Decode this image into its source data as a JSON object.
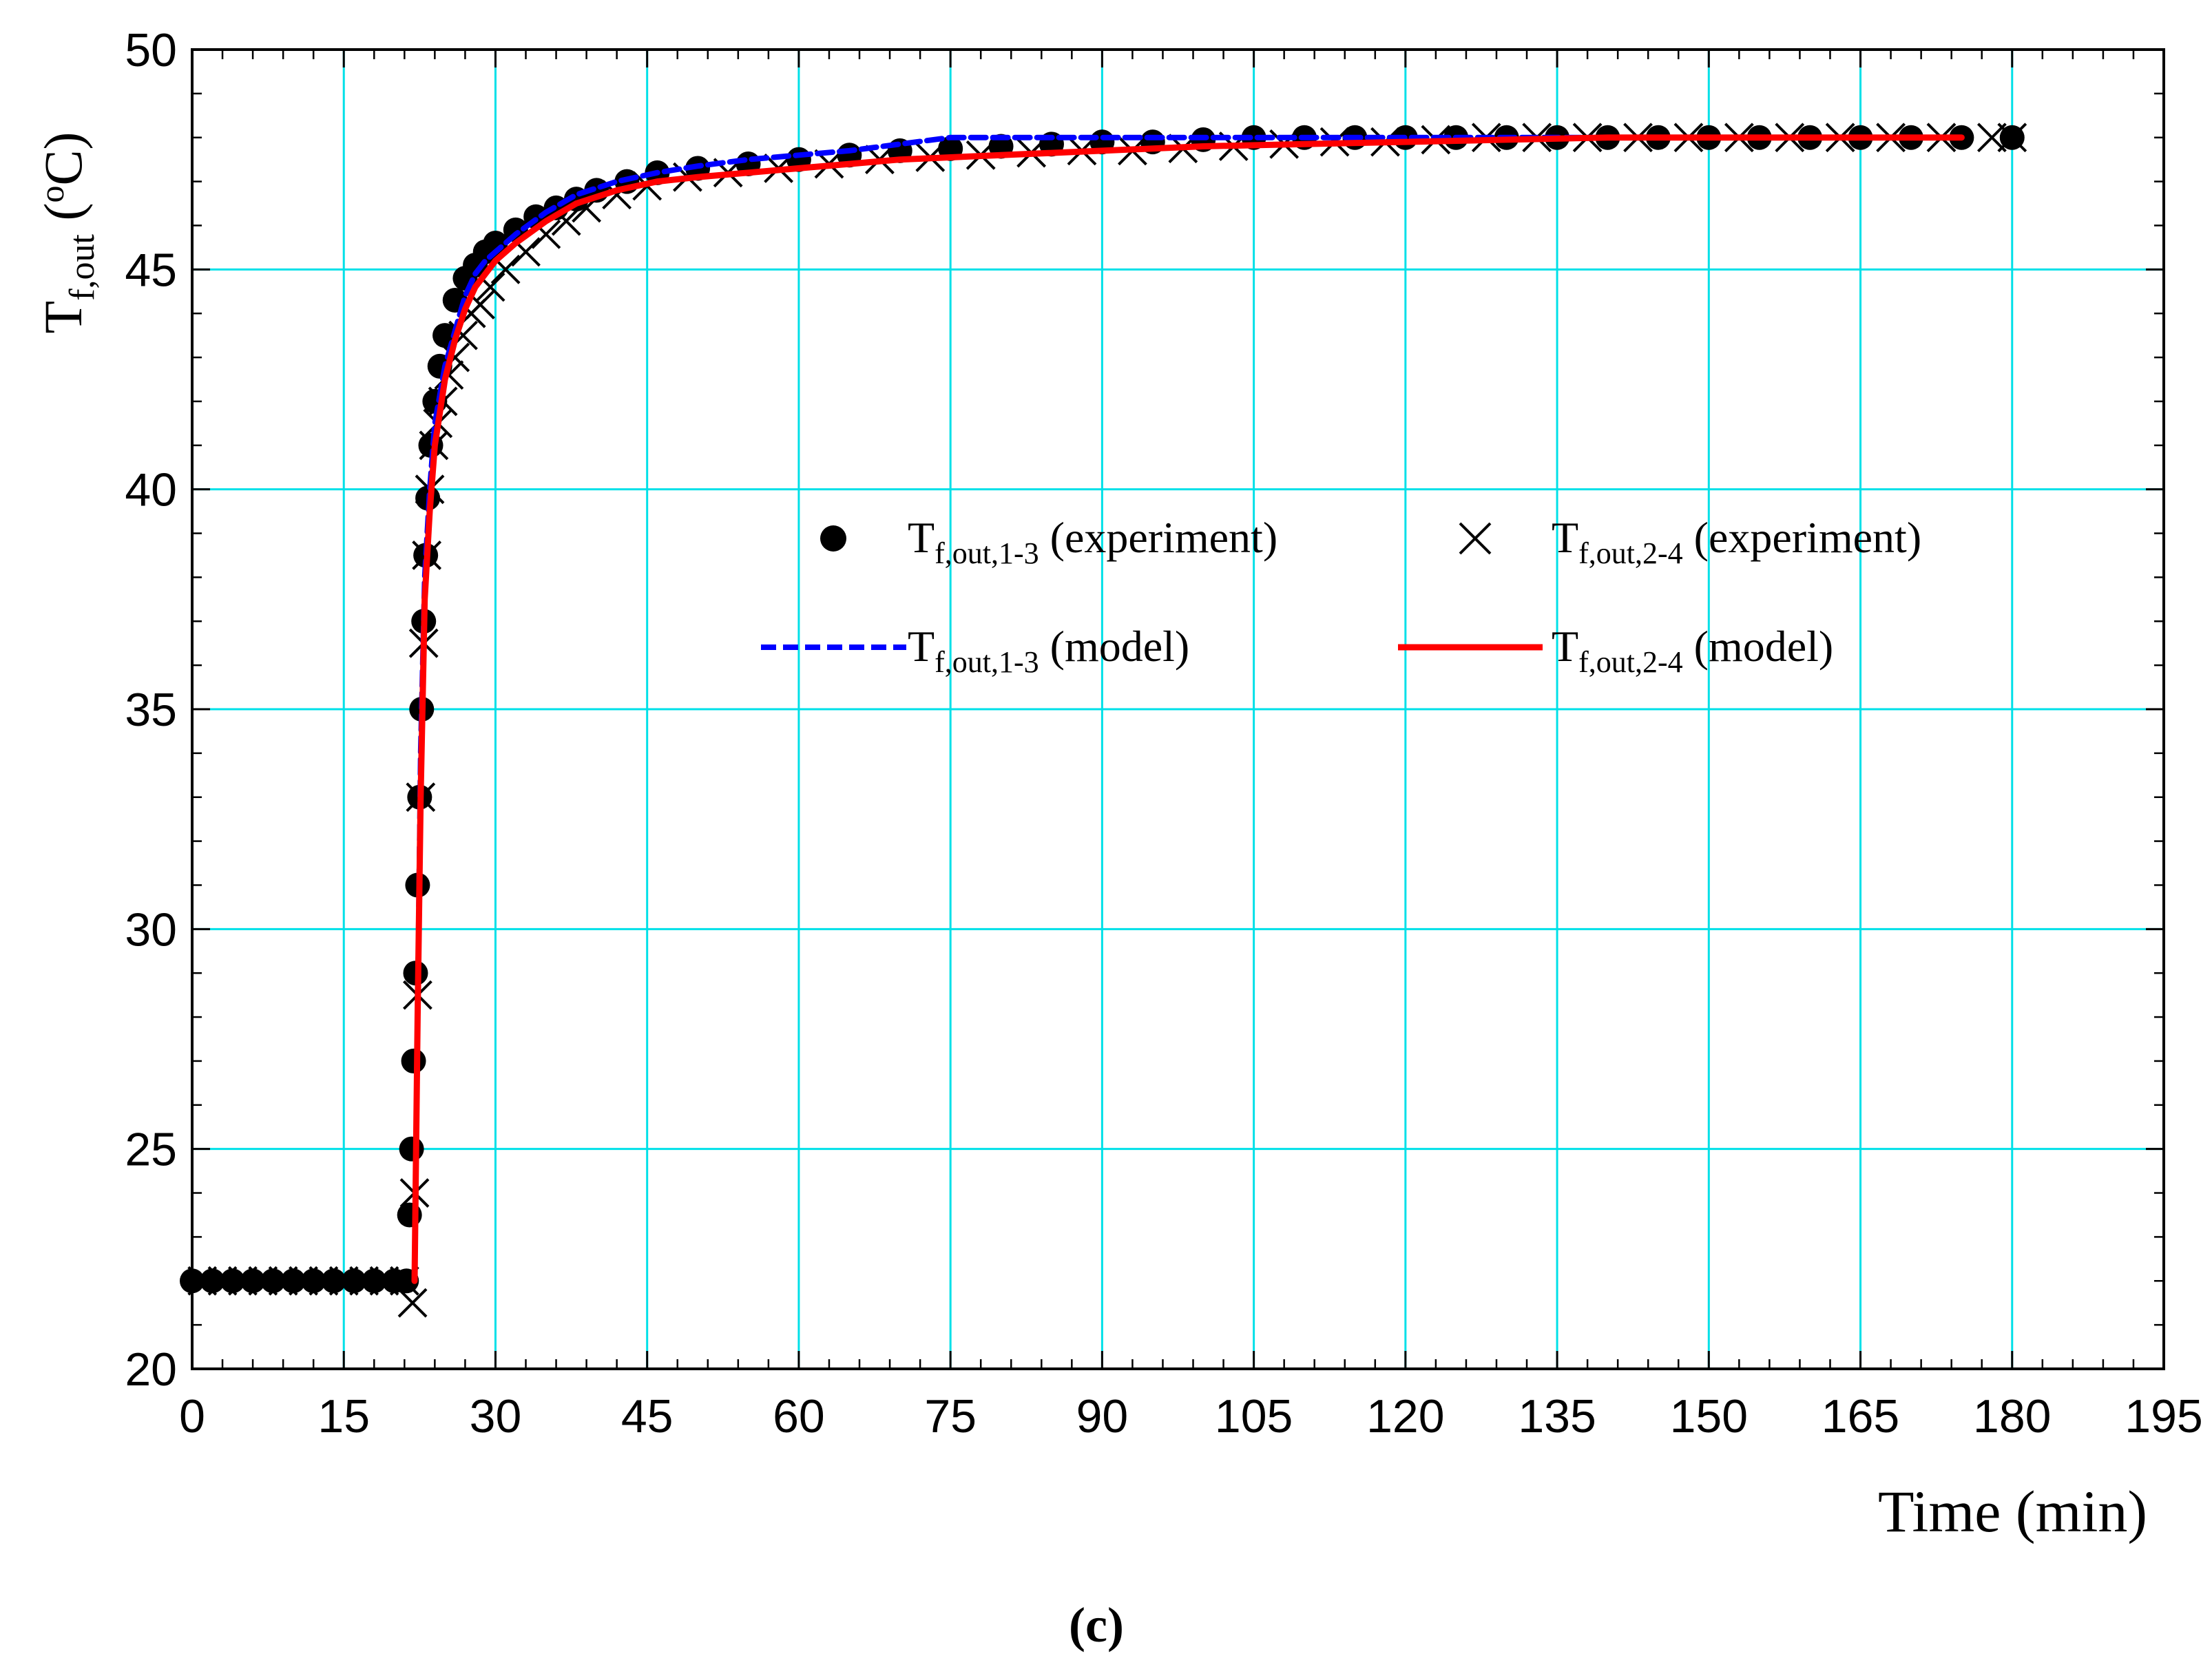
{
  "chart_data": {
    "type": "line",
    "xlabel": "Time (min)",
    "ylabel": {
      "base": "T",
      "sub": "f,out",
      "unit_open": " (",
      "unit_sup": "o",
      "unit_close": "C)"
    },
    "xlim": [
      0,
      195
    ],
    "ylim": [
      20,
      50
    ],
    "xticks": [
      0,
      15,
      30,
      45,
      60,
      75,
      90,
      105,
      120,
      135,
      150,
      165,
      180,
      195
    ],
    "yticks": [
      20,
      25,
      30,
      35,
      40,
      45,
      50
    ],
    "grid": true,
    "legend_position": "center",
    "panel_label": "(c)",
    "series": [
      {
        "name": "Tf,out,1-3 (experiment)",
        "legend": {
          "base": "T",
          "sub": "f,out,1-3",
          "rest": " (experiment)"
        },
        "kind": "scatter",
        "marker": "circle",
        "color": "#000000",
        "x": [
          0,
          2,
          4,
          6,
          8,
          10,
          12,
          14,
          16,
          18,
          20,
          21.2,
          21.5,
          21.7,
          21.9,
          22.1,
          22.3,
          22.5,
          22.7,
          22.9,
          23.1,
          23.3,
          23.6,
          24,
          24.5,
          25,
          26,
          27,
          28,
          29,
          30,
          32,
          34,
          36,
          38,
          40,
          43,
          46,
          50,
          55,
          60,
          65,
          70,
          75,
          80,
          85,
          90,
          95,
          100,
          105,
          110,
          115,
          120,
          125,
          130,
          135,
          140,
          145,
          150,
          155,
          160,
          165,
          170,
          175,
          180
        ],
        "y": [
          22,
          22,
          22,
          22,
          22,
          22,
          22,
          22,
          22,
          22,
          22,
          22,
          23.5,
          25,
          27,
          29,
          31,
          33,
          35,
          37,
          38.5,
          39.8,
          41,
          42,
          42.8,
          43.5,
          44.3,
          44.8,
          45.1,
          45.4,
          45.6,
          45.9,
          46.2,
          46.4,
          46.6,
          46.8,
          47,
          47.2,
          47.3,
          47.4,
          47.5,
          47.6,
          47.7,
          47.75,
          47.8,
          47.85,
          47.9,
          47.9,
          47.95,
          48,
          48,
          48,
          48,
          48,
          48,
          48,
          48,
          48,
          48,
          48,
          48,
          48,
          48,
          48,
          48
        ]
      },
      {
        "name": "Tf,out,2-4 (experiment)",
        "legend": {
          "base": "T",
          "sub": "f,out,2-4",
          "rest": " (experiment)"
        },
        "kind": "scatter",
        "marker": "cross",
        "color": "#000000",
        "x": [
          1,
          3,
          5,
          7,
          9,
          11,
          13,
          15,
          17,
          19,
          21,
          21.8,
          22,
          22.3,
          22.6,
          22.9,
          23.2,
          23.5,
          23.9,
          24.3,
          24.8,
          25.4,
          26,
          26.8,
          27.6,
          28.5,
          29.5,
          31,
          33,
          35,
          37,
          39,
          42,
          45,
          49,
          53,
          58,
          63,
          68,
          73,
          78,
          83,
          88,
          93,
          98,
          103,
          108,
          113,
          118,
          123,
          128,
          133,
          138,
          143,
          148,
          153,
          158,
          163,
          168,
          173,
          178,
          180
        ],
        "y": [
          22,
          22,
          22,
          22,
          22,
          22,
          22,
          22,
          22,
          22,
          22,
          21.5,
          24,
          28.5,
          33,
          36.5,
          38.5,
          40,
          41,
          41.5,
          42,
          42.6,
          43,
          43.5,
          44,
          44.2,
          44.6,
          45,
          45.4,
          45.8,
          46.1,
          46.4,
          46.7,
          46.9,
          47.1,
          47.2,
          47.3,
          47.4,
          47.5,
          47.55,
          47.6,
          47.65,
          47.7,
          47.7,
          47.75,
          47.8,
          47.85,
          47.9,
          47.9,
          47.95,
          48,
          48,
          48,
          48,
          48,
          48,
          48,
          48,
          48,
          48,
          48,
          48
        ]
      },
      {
        "name": "Tf,out,1-3 (model)",
        "legend": {
          "base": "T",
          "sub": "f,out,1-3",
          "rest": " (model)"
        },
        "kind": "line",
        "style": "dashed",
        "color": "#0000ff",
        "x": [
          22,
          22.3,
          22.6,
          23,
          23.5,
          24,
          25,
          26,
          27,
          28,
          29,
          30,
          32,
          35,
          38,
          42,
          46,
          50,
          55,
          60,
          65,
          70,
          75,
          80,
          90,
          100,
          110,
          120,
          130,
          140,
          150,
          160,
          170,
          175
        ],
        "y": [
          22,
          28,
          34,
          38,
          40,
          41.5,
          42.8,
          43.6,
          44.4,
          44.9,
          45.2,
          45.4,
          45.8,
          46.3,
          46.7,
          47,
          47.2,
          47.35,
          47.5,
          47.6,
          47.7,
          47.85,
          48,
          48,
          48,
          48,
          48,
          48,
          48,
          48,
          48,
          48,
          48,
          48
        ]
      },
      {
        "name": "Tf,out,2-4 (model)",
        "legend": {
          "base": "T",
          "sub": "f,out,2-4",
          "rest": " (model)"
        },
        "kind": "line",
        "style": "solid",
        "color": "#ff0000",
        "x": [
          22,
          22.3,
          22.6,
          23,
          23.5,
          24,
          25,
          26,
          27,
          28,
          29,
          30,
          32,
          35,
          38,
          42,
          46,
          50,
          55,
          60,
          65,
          70,
          75,
          80,
          90,
          100,
          110,
          120,
          130,
          140,
          150,
          160,
          170,
          175
        ],
        "y": [
          22,
          28,
          33,
          37.5,
          39.5,
          41,
          42.5,
          43.4,
          44.1,
          44.6,
          44.9,
          45.2,
          45.6,
          46.1,
          46.5,
          46.8,
          47,
          47.1,
          47.2,
          47.3,
          47.4,
          47.5,
          47.55,
          47.6,
          47.7,
          47.8,
          47.85,
          47.9,
          47.95,
          48,
          48,
          48,
          48,
          48
        ]
      }
    ]
  },
  "colors": {
    "grid": "#00e0e8",
    "axis": "#000000",
    "background": "#ffffff"
  }
}
